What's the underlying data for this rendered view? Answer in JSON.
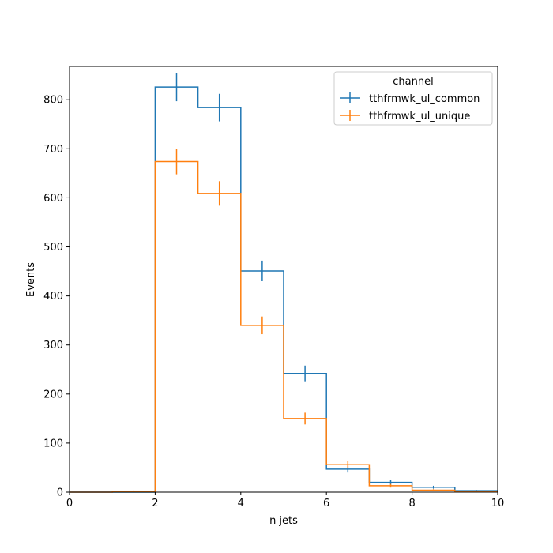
{
  "chart_data": {
    "type": "histogram",
    "xlabel": "n jets",
    "ylabel": "Events",
    "xlim": [
      0,
      10
    ],
    "ylim": [
      0,
      868
    ],
    "x_ticks": [
      0,
      2,
      4,
      6,
      8,
      10
    ],
    "y_ticks": [
      0,
      100,
      200,
      300,
      400,
      500,
      600,
      700,
      800
    ],
    "bin_edges": [
      0,
      1,
      2,
      3,
      4,
      5,
      6,
      7,
      8,
      9,
      10
    ],
    "legend": {
      "title": "channel",
      "location": "upper right"
    },
    "series": [
      {
        "name": "tthfrmwk_ul_common",
        "color": "#1f77b4",
        "values": [
          0,
          0,
          826,
          784,
          451,
          242,
          47,
          20,
          10,
          3
        ],
        "errors": [
          0,
          0,
          29,
          28,
          21,
          16,
          7,
          4.5,
          3,
          1.7
        ]
      },
      {
        "name": "tthfrmwk_ul_unique",
        "color": "#ff7f0e",
        "values": [
          0,
          2,
          674,
          609,
          340,
          150,
          56,
          13,
          4,
          2
        ],
        "errors": [
          0,
          1.4,
          26,
          25,
          18,
          12,
          7.5,
          3.6,
          2,
          1.4
        ]
      }
    ]
  }
}
